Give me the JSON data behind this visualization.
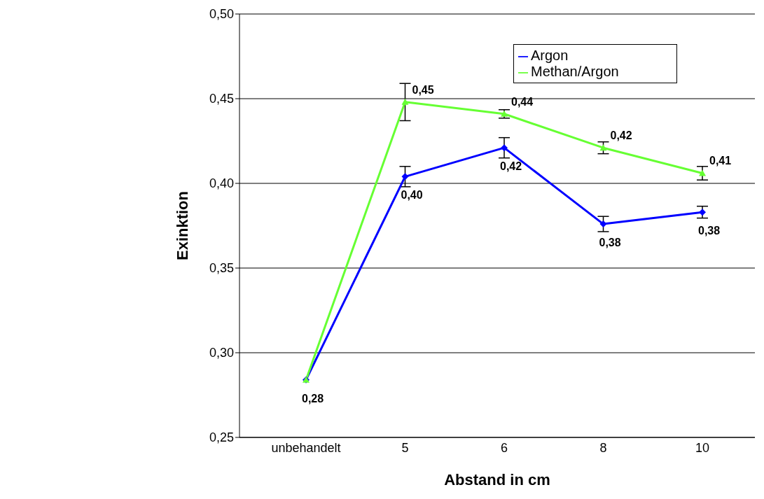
{
  "chart_data": {
    "type": "line",
    "xlabel": "Abstand in cm",
    "ylabel": "Exinktion",
    "categories": [
      "unbehandelt",
      "5",
      "6",
      "8",
      "10"
    ],
    "series": [
      {
        "name": "Argon",
        "color": "#0000ff",
        "marker": "diamond",
        "values": [
          0.284,
          0.404,
          0.421,
          0.376,
          0.383
        ],
        "errors": [
          null,
          0.006,
          0.006,
          0.0045,
          0.0035
        ],
        "value_labels": [
          "0,28",
          "0,40",
          "0,42",
          "0,38",
          "0,38"
        ]
      },
      {
        "name": "Methan/Argon",
        "color": "#66ff33",
        "marker": "triangle",
        "values": [
          0.284,
          0.448,
          0.441,
          0.421,
          0.406
        ],
        "errors": [
          null,
          0.011,
          0.0025,
          0.0035,
          0.004
        ],
        "value_labels": [
          null,
          "0,45",
          "0,44",
          "0,42",
          "0,41"
        ]
      }
    ],
    "ylim": [
      0.25,
      0.5
    ],
    "yticks": [
      {
        "value": 0.25,
        "label": "0,25"
      },
      {
        "value": 0.3,
        "label": "0,30"
      },
      {
        "value": 0.35,
        "label": "0,35"
      },
      {
        "value": 0.4,
        "label": "0,40"
      },
      {
        "value": 0.45,
        "label": "0,45"
      },
      {
        "value": 0.5,
        "label": "0,50"
      }
    ],
    "grid": "y",
    "legend": "top right",
    "line_style": "solid"
  }
}
